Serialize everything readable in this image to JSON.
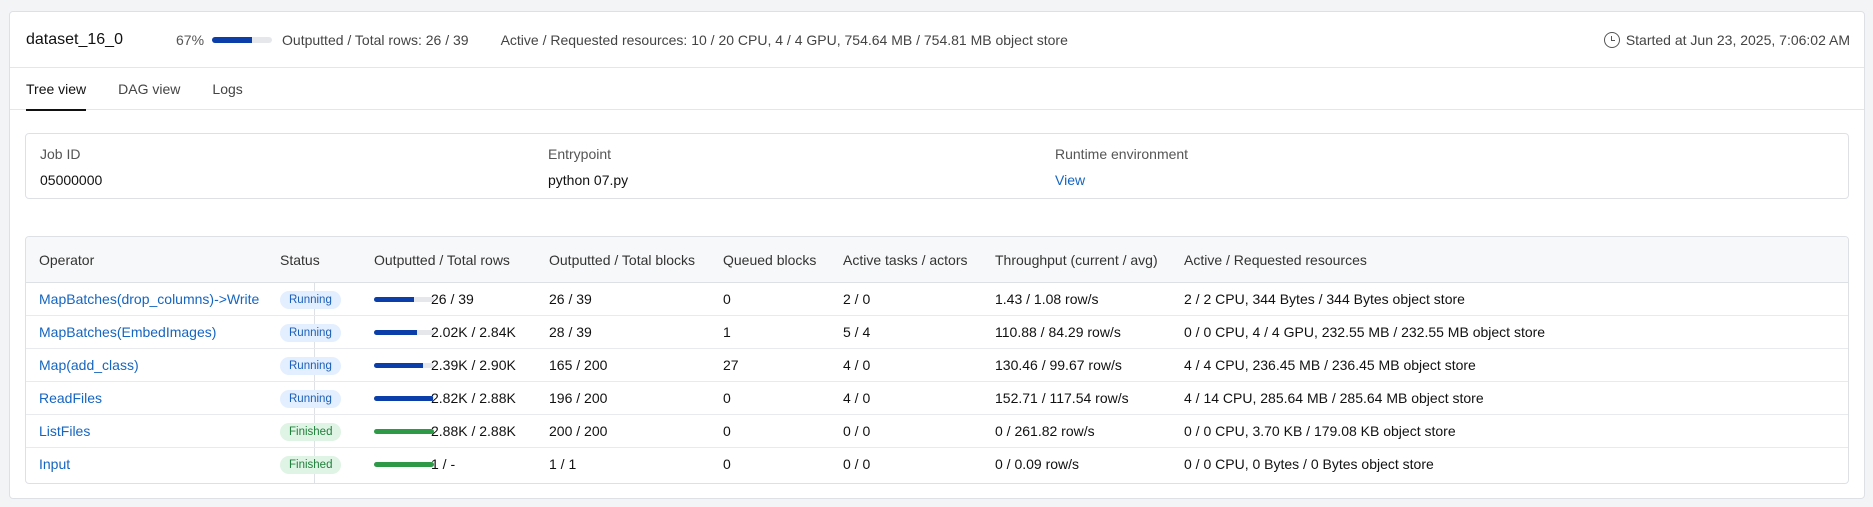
{
  "header": {
    "dataset_name": "dataset_16_0",
    "progress_pct_label": "67%",
    "progress_fraction": 0.67,
    "rows_text": "Outputted / Total rows: 26 / 39",
    "resources_text": "Active / Requested resources: 10 / 20 CPU, 4 / 4 GPU, 754.64 MB / 754.81 MB object store",
    "started_text": "Started at Jun 23, 2025, 7:06:02 AM"
  },
  "tabs": [
    {
      "label": "Tree view",
      "active": true
    },
    {
      "label": "DAG view",
      "active": false
    },
    {
      "label": "Logs",
      "active": false
    }
  ],
  "info": {
    "job_id_label": "Job ID",
    "job_id_value": "05000000",
    "entrypoint_label": "Entrypoint",
    "entrypoint_value": "python 07.py",
    "runtime_label": "Runtime environment",
    "runtime_link": "View"
  },
  "table": {
    "columns": [
      "Operator",
      "Status",
      "Outputted / Total rows",
      "Outputted / Total blocks",
      "Queued blocks",
      "Active tasks / actors",
      "Throughput (current / avg)",
      "Active / Requested resources"
    ],
    "rows": [
      {
        "operator": "MapBatches(drop_columns)->Write",
        "status": "Running",
        "progress": 0.667,
        "rows": "26 / 39",
        "blocks": "26 / 39",
        "queued": "0",
        "tasks": "2 / 0",
        "throughput": "1.43 / 1.08 row/s",
        "resources": "2 / 2 CPU, 344 Bytes / 344 Bytes object store"
      },
      {
        "operator": "MapBatches(EmbedImages)",
        "status": "Running",
        "progress": 0.71,
        "rows": "2.02K / 2.84K",
        "blocks": "28 / 39",
        "queued": "1",
        "tasks": "5 / 4",
        "throughput": "110.88 / 84.29 row/s",
        "resources": "0 / 0 CPU, 4 / 4 GPU, 232.55 MB / 232.55 MB object store"
      },
      {
        "operator": "Map(add_class)",
        "status": "Running",
        "progress": 0.82,
        "rows": "2.39K / 2.90K",
        "blocks": "165 / 200",
        "queued": "27",
        "tasks": "4 / 0",
        "throughput": "130.46 / 99.67 row/s",
        "resources": "4 / 4 CPU, 236.45 MB / 236.45 MB object store"
      },
      {
        "operator": "ReadFiles",
        "status": "Running",
        "progress": 0.98,
        "rows": "2.82K / 2.88K",
        "blocks": "196 / 200",
        "queued": "0",
        "tasks": "4 / 0",
        "throughput": "152.71 / 117.54 row/s",
        "resources": "4 / 14 CPU, 285.64 MB / 285.64 MB object store"
      },
      {
        "operator": "ListFiles",
        "status": "Finished",
        "progress": 1.0,
        "rows": "2.88K / 2.88K",
        "blocks": "200 / 200",
        "queued": "0",
        "tasks": "0 / 0",
        "throughput": "0 / 261.82 row/s",
        "resources": "0 / 0 CPU, 3.70 KB / 179.08 KB object store"
      },
      {
        "operator": "Input",
        "status": "Finished",
        "progress": 1.0,
        "rows": "1 / -",
        "blocks": "1 / 1",
        "queued": "0",
        "tasks": "0 / 0",
        "throughput": "0 / 0.09 row/s",
        "resources": "0 / 0 CPU, 0 Bytes / 0 Bytes object store"
      }
    ]
  },
  "colors": {
    "link": "#1565c0",
    "running_bar": "#0b3ea8",
    "finished_bar": "#2e9a48",
    "running_badge_bg": "#e3efff",
    "finished_badge_bg": "#dff4e4"
  },
  "icons": {
    "started": "clock-icon"
  }
}
